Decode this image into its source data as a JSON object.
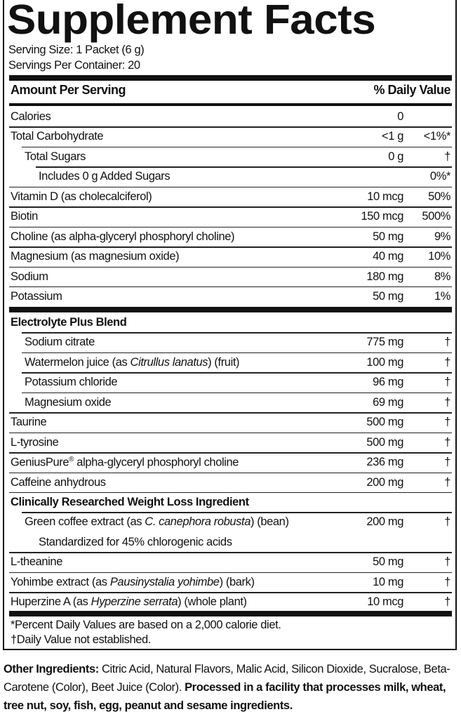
{
  "title": "Supplement Facts",
  "serving_size": "Serving Size: 1 Packet (6 g)",
  "servings_per_container": "Servings Per Container: 20",
  "header": {
    "amount": "Amount Per Serving",
    "dv": "% Daily Value"
  },
  "section1": [
    {
      "name": "Calories",
      "amount": "0",
      "dv": "",
      "indent": 0
    },
    {
      "name": "Total Carbohydrate",
      "amount": "<1 g",
      "dv": "<1%*",
      "indent": 0
    },
    {
      "name": "Total Sugars",
      "amount": "0 g",
      "dv": "†",
      "indent": 1
    },
    {
      "name": "Includes 0 g Added Sugars",
      "amount": "",
      "dv": "0%*",
      "indent": 2
    },
    {
      "name": "Vitamin D (as cholecalciferol)",
      "amount": "10 mcg",
      "dv": "50%",
      "indent": 0
    },
    {
      "name": "Biotin",
      "amount": "150 mcg",
      "dv": "500%",
      "indent": 0
    },
    {
      "name": "Choline (as alpha-glyceryl phosphoryl choline)",
      "amount": "50 mg",
      "dv": "9%",
      "indent": 0
    },
    {
      "name": "Magnesium (as magnesium oxide)",
      "amount": "40 mg",
      "dv": "10%",
      "indent": 0
    },
    {
      "name": "Sodium",
      "amount": "180 mg",
      "dv": "8%",
      "indent": 0
    },
    {
      "name": "Potassium",
      "amount": "50 mg",
      "dv": "1%",
      "indent": 0
    }
  ],
  "section2": [
    {
      "name": "Electrolyte Plus Blend",
      "amount": "",
      "dv": "",
      "indent": 0,
      "bold": true
    },
    {
      "name": "Sodium citrate",
      "amount": "775 mg",
      "dv": "†",
      "indent": 1
    },
    {
      "name_parts": [
        "Watermelon juice (as ",
        "Citrullus lanatus",
        ") (fruit)"
      ],
      "amount": "100 mg",
      "dv": "†",
      "indent": 1
    },
    {
      "name": "Potassium chloride",
      "amount": "96 mg",
      "dv": "†",
      "indent": 1
    },
    {
      "name": "Magnesium oxide",
      "amount": "69 mg",
      "dv": "†",
      "indent": 1
    },
    {
      "name": "Taurine",
      "amount": "500 mg",
      "dv": "†",
      "indent": 0
    },
    {
      "name": "L-tyrosine",
      "amount": "500 mg",
      "dv": "†",
      "indent": 0
    },
    {
      "name_parts": [
        "GeniusPure",
        "®",
        " alpha-glyceryl phosphoryl choline"
      ],
      "amount": "236 mg",
      "dv": "†",
      "indent": 0,
      "sup": true
    },
    {
      "name": "Caffeine anhydrous",
      "amount": "200 mg",
      "dv": "†",
      "indent": 0
    },
    {
      "name": "Clinically Researched Weight Loss Ingredient",
      "amount": "",
      "dv": "",
      "indent": 0,
      "bold": true
    },
    {
      "name_parts": [
        "Green coffee extract (as ",
        "C. canephora robusta",
        ") (bean)"
      ],
      "amount": "200 mg",
      "dv": "†",
      "indent": 1
    },
    {
      "name": "Standardized for 45% chlorogenic acids",
      "amount": "",
      "dv": "",
      "indent": 2,
      "noline": true
    },
    {
      "name": "L-theanine",
      "amount": "50 mg",
      "dv": "†",
      "indent": 0
    },
    {
      "name_parts": [
        "Yohimbe extract (as ",
        "Pausinystalia yohimbe",
        ") (bark)"
      ],
      "amount": "10 mg",
      "dv": "†",
      "indent": 0
    },
    {
      "name_parts": [
        "Huperzine A (as ",
        "Hyperzine serrata",
        ") (whole plant)"
      ],
      "amount": "10 mcg",
      "dv": "†",
      "indent": 0
    }
  ],
  "footnotes": [
    "*Percent Daily Values are based on a 2,000 calorie diet.",
    "†Daily Value not established."
  ],
  "other_ingredients": {
    "label": "Other Ingredients:",
    "text": " Citric Acid, Natural Flavors, Malic Acid, Silicon Dioxide, Sucralose, Beta-Carotene (Color), Beet Juice (Color). ",
    "allergen": "Processed in a facility that processes milk, wheat, tree nut, soy, fish, egg, peanut and sesame ingredients."
  }
}
